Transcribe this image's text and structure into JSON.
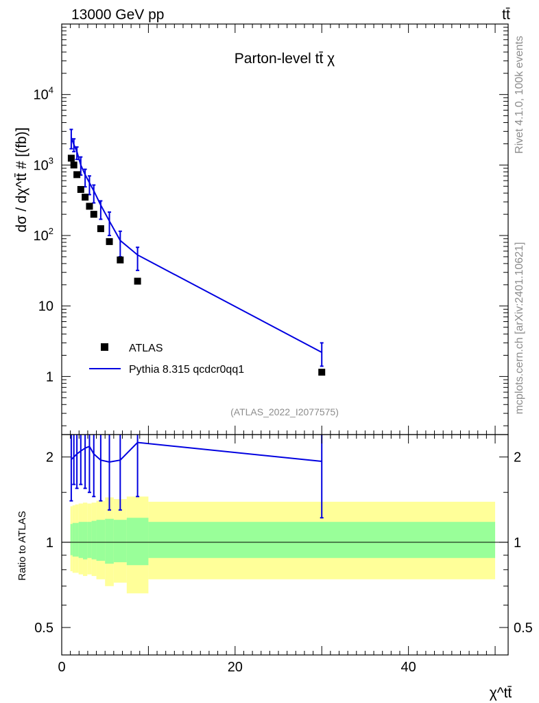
{
  "header": {
    "energy_label": "13000 GeV pp",
    "process_label": "tt̄"
  },
  "side_labels": {
    "rivet": "Rivet 4.1.0,  100k events",
    "mcplots": "mcplots.cern.ch [arXiv:2401.10621]"
  },
  "chart_data": [
    {
      "type": "scatter",
      "title": "Parton-level tt̄ χ",
      "ylabel": "dσ / dχ^tt̄ # [(fb)]",
      "yscale": "log",
      "ylim": [
        0.15,
        100000
      ],
      "xlim": [
        0,
        51.5
      ],
      "yticks": [
        {
          "value": 1,
          "label": "1"
        },
        {
          "value": 10,
          "label": "10"
        },
        {
          "value": 100,
          "label": "10",
          "exp": "2"
        },
        {
          "value": 1000,
          "label": "10",
          "exp": "3"
        },
        {
          "value": 10000,
          "label": "10",
          "exp": "4"
        }
      ],
      "watermark": "(ATLAS_2022_I2077575)",
      "series": [
        {
          "name": "ATLAS",
          "kind": "markers",
          "color": "#000000",
          "x": [
            1.1,
            1.4,
            1.75,
            2.2,
            2.7,
            3.2,
            3.7,
            4.5,
            5.5,
            6.75,
            8.75,
            30
          ],
          "y": [
            1250,
            1000,
            730,
            450,
            350,
            260,
            200,
            125,
            82,
            45,
            22.5,
            1.15
          ]
        },
        {
          "name": "Pythia 8.315 qcdcr0qq1",
          "kind": "line",
          "color": "#0000e0",
          "x": [
            1.1,
            1.4,
            1.75,
            2.2,
            2.7,
            3.2,
            3.7,
            4.5,
            5.5,
            6.75,
            8.75,
            30
          ],
          "y": [
            2450,
            1950,
            1550,
            1000,
            730,
            560,
            430,
            270,
            160,
            85,
            53,
            2.2
          ],
          "yerr_low": [
            1700,
            1550,
            1200,
            720,
            490,
            380,
            290,
            170,
            100,
            50,
            32,
            1.4
          ],
          "yerr_high": [
            3200,
            2350,
            1800,
            1300,
            870,
            700,
            520,
            310,
            215,
            115,
            68,
            3.0
          ]
        }
      ],
      "legend": {
        "position": "bottom-left"
      }
    },
    {
      "type": "line",
      "ylabel": "Ratio to ATLAS",
      "xlabel": "χ^tt̄",
      "yscale": "log",
      "ylim": [
        0.4,
        2.4
      ],
      "xlim": [
        0,
        51.5
      ],
      "xticks": [
        {
          "value": 0,
          "label": "0"
        },
        {
          "value": 20,
          "label": "20"
        },
        {
          "value": 40,
          "label": "40"
        }
      ],
      "yticks": [
        {
          "value": 0.5,
          "label": "0.5"
        },
        {
          "value": 1,
          "label": "1"
        },
        {
          "value": 2,
          "label": "2"
        }
      ],
      "reference_line": 1,
      "bin_edges": [
        1,
        1.25,
        1.55,
        1.95,
        2.45,
        2.95,
        3.45,
        4.0,
        5.0,
        6.0,
        7.5,
        10.0,
        50
      ],
      "band_total": {
        "color": "#ffff99",
        "low": [
          0.79,
          0.78,
          0.78,
          0.77,
          0.76,
          0.77,
          0.76,
          0.74,
          0.7,
          0.72,
          0.66,
          0.74
        ],
        "high": [
          1.34,
          1.35,
          1.36,
          1.37,
          1.38,
          1.37,
          1.38,
          1.4,
          1.44,
          1.42,
          1.45,
          1.39
        ]
      },
      "band_stat": {
        "color": "#99ff99",
        "low": [
          0.9,
          0.89,
          0.89,
          0.88,
          0.87,
          0.88,
          0.87,
          0.86,
          0.84,
          0.85,
          0.83,
          0.88
        ],
        "high": [
          1.16,
          1.17,
          1.17,
          1.18,
          1.18,
          1.18,
          1.19,
          1.2,
          1.21,
          1.2,
          1.22,
          1.18
        ]
      },
      "series": [
        {
          "name": "Pythia 8.315 qcdcr0qq1 / ATLAS",
          "color": "#0000e0",
          "x": [
            1.1,
            1.4,
            1.75,
            2.2,
            2.7,
            3.2,
            3.7,
            4.5,
            5.5,
            6.75,
            8.75,
            30
          ],
          "y": [
            1.96,
            2.0,
            2.05,
            2.1,
            2.15,
            2.18,
            2.05,
            1.95,
            1.92,
            1.95,
            2.25,
            1.93
          ],
          "yerr_low": [
            1.4,
            1.6,
            1.55,
            1.6,
            1.55,
            1.5,
            1.45,
            1.4,
            1.3,
            1.3,
            1.45,
            1.22
          ],
          "yerr_high": [
            2.5,
            2.5,
            2.5,
            2.5,
            2.5,
            2.5,
            2.5,
            2.5,
            2.5,
            2.5,
            2.5,
            2.5
          ]
        }
      ]
    }
  ]
}
